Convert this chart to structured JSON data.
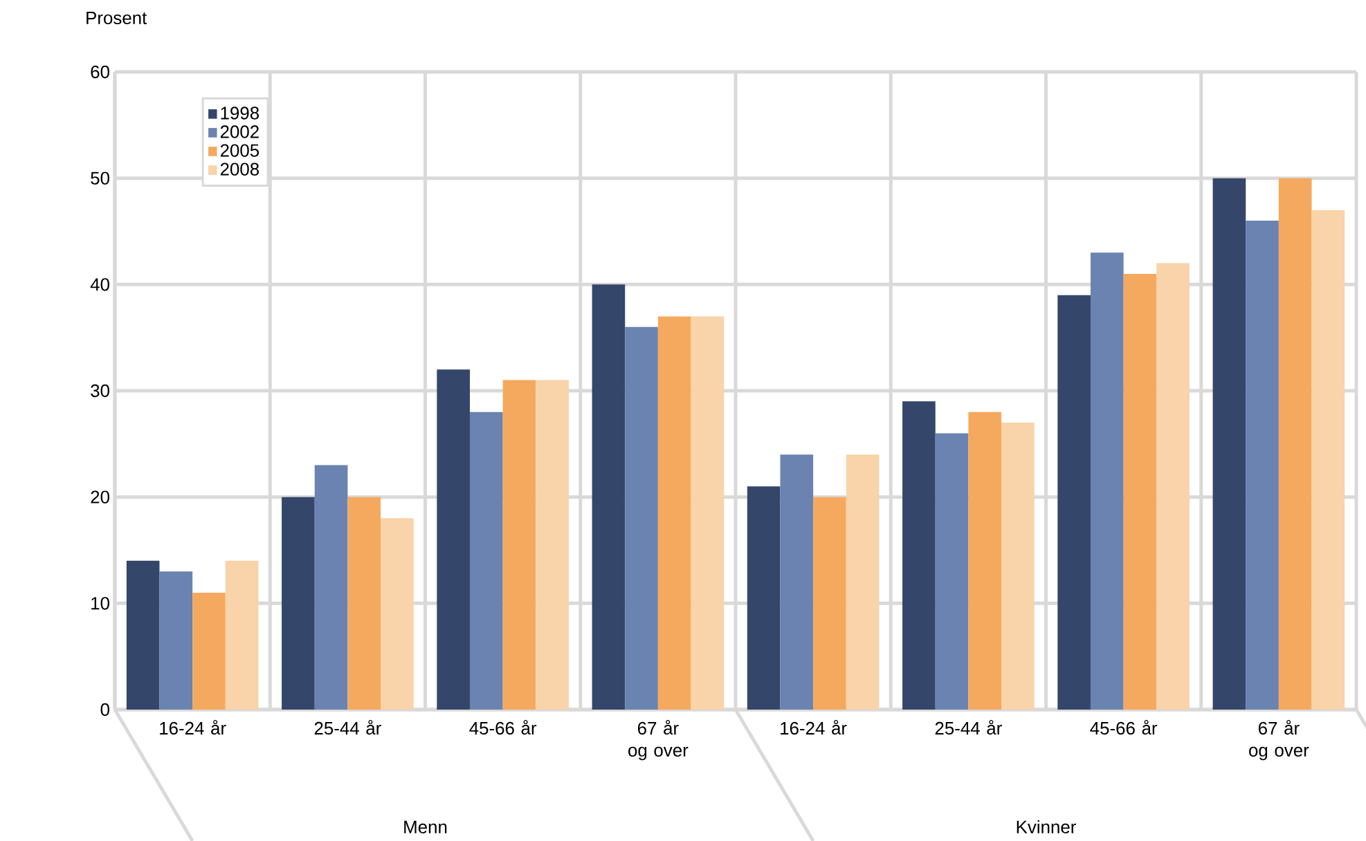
{
  "chart_data": {
    "type": "bar",
    "ylabel": "Prosent",
    "categories": [
      "16-24 år",
      "25-44 år",
      "45-66 år",
      "67 år og over",
      "16-24 år",
      "25-44 år",
      "45-66 år",
      "67 år og over"
    ],
    "series": [
      {
        "name": "1998",
        "color": "#34466a",
        "values": [
          14,
          20,
          32,
          40,
          21,
          29,
          39,
          50
        ]
      },
      {
        "name": "2002",
        "color": "#6b83b0",
        "values": [
          13,
          23,
          28,
          36,
          24,
          26,
          43,
          46
        ]
      },
      {
        "name": "2005",
        "color": "#f5a95e",
        "values": [
          11,
          20,
          31,
          37,
          20,
          28,
          41,
          50
        ]
      },
      {
        "name": "2008",
        "color": "#f9d3a9",
        "values": [
          14,
          18,
          31,
          37,
          24,
          27,
          42,
          47
        ]
      }
    ],
    "annotations": [
      "Menn",
      "Kvinner"
    ],
    "ylim": [
      0,
      60
    ],
    "yticks": [
      0,
      10,
      20,
      30,
      40,
      50,
      60
    ],
    "grid": true,
    "legend": "top left"
  }
}
